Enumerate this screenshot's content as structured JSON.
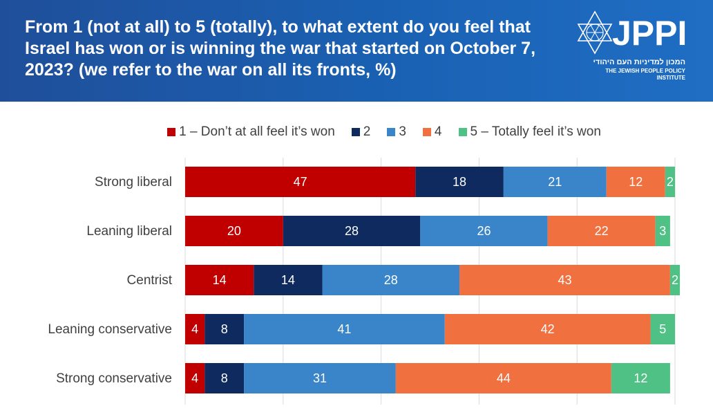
{
  "header": {
    "title": "From 1 (not at all) to 5 (totally), to what extent do you feel that Israel has won or is winning the war that started on October 7, 2023? (we refer to the war on all its fronts, %)",
    "logo_text": "JPPI",
    "logo_hebrew": "המכון למדיניות העם היהודי",
    "logo_english": "THE JEWISH PEOPLE POLICY INSTITUTE"
  },
  "colors": {
    "header_bg": "#1a5fb4",
    "series": [
      "#c00000",
      "#0e2a5e",
      "#3a85c9",
      "#f07040",
      "#4fc184"
    ]
  },
  "chart_data": {
    "type": "bar",
    "orientation": "horizontal",
    "stacked": true,
    "categories": [
      "Strong liberal",
      "Leaning liberal",
      "Centrist",
      "Leaning conservative",
      "Strong conservative"
    ],
    "series": [
      {
        "name": "1 – Don’t at all feel it’s won",
        "values": [
          47,
          20,
          14,
          4,
          4
        ]
      },
      {
        "name": "2",
        "values": [
          18,
          28,
          14,
          8,
          8
        ]
      },
      {
        "name": "3",
        "values": [
          21,
          26,
          28,
          41,
          31
        ]
      },
      {
        "name": "4",
        "values": [
          12,
          22,
          43,
          42,
          44
        ]
      },
      {
        "name": "5 – Totally feel it’s won",
        "values": [
          2,
          3,
          2,
          5,
          12
        ]
      }
    ],
    "legend_position": "top",
    "grid": true,
    "xlim": [
      0,
      100
    ]
  }
}
